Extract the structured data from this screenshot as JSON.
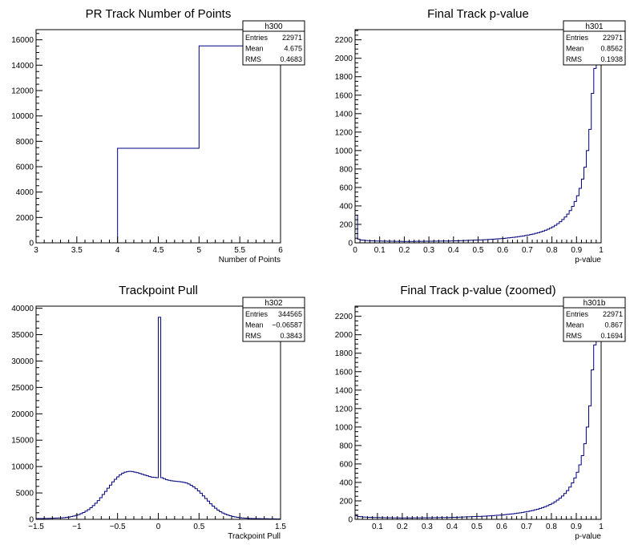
{
  "chart_data": [
    {
      "type": "bar",
      "title": "PR Track Number of Points",
      "xlabel": "Number of Points",
      "ylabel": "",
      "xlim": [
        3,
        6
      ],
      "ylim": [
        0,
        16800
      ],
      "xticks": [
        3,
        3.5,
        4,
        4.5,
        5,
        5.5,
        6
      ],
      "xtick_labels": [
        "3",
        "3.5",
        "4",
        "4.5",
        "5",
        "5.5",
        "6"
      ],
      "yticks": [
        0,
        2000,
        4000,
        6000,
        8000,
        10000,
        12000,
        14000,
        16000
      ],
      "ytick_labels": [
        "0",
        "2000",
        "4000",
        "6000",
        "8000",
        "10000",
        "12000",
        "14000",
        "16000"
      ],
      "bins": [
        [
          4,
          5,
          7450
        ],
        [
          5,
          6,
          15520
        ]
      ],
      "stats": {
        "name": "h300",
        "rows": [
          [
            "Entries",
            "22971"
          ],
          [
            "Mean",
            "4.675"
          ],
          [
            "RMS",
            "0.4683"
          ]
        ]
      }
    },
    {
      "type": "bar",
      "title": "Final Track p-value",
      "xlabel": "p-value",
      "ylabel": "",
      "xlim": [
        0,
        1
      ],
      "ylim": [
        0,
        2310
      ],
      "xticks": [
        0,
        0.1,
        0.2,
        0.3,
        0.4,
        0.5,
        0.6,
        0.7,
        0.8,
        0.9,
        1
      ],
      "xtick_labels": [
        "0",
        "0.1",
        "0.2",
        "0.3",
        "0.4",
        "0.5",
        "0.6",
        "0.7",
        "0.8",
        "0.9",
        "1"
      ],
      "yticks": [
        0,
        200,
        400,
        600,
        800,
        1000,
        1200,
        1400,
        1600,
        1800,
        2000,
        2200
      ],
      "ytick_labels": [
        "0",
        "200",
        "400",
        "600",
        "800",
        "1000",
        "1200",
        "1400",
        "1600",
        "1800",
        "2000",
        "2200"
      ],
      "bin_start": 0,
      "bin_width": 0.01,
      "values": [
        300,
        40,
        30,
        28,
        25,
        24,
        22,
        22,
        20,
        20,
        19,
        18,
        18,
        17,
        17,
        17,
        16,
        16,
        16,
        15,
        15,
        15,
        15,
        15,
        16,
        16,
        16,
        16,
        17,
        17,
        17,
        17,
        18,
        18,
        18,
        19,
        19,
        20,
        20,
        21,
        22,
        22,
        23,
        24,
        25,
        26,
        27,
        28,
        29,
        30,
        31,
        32,
        34,
        35,
        37,
        38,
        40,
        42,
        44,
        46,
        48,
        51,
        54,
        57,
        60,
        63,
        67,
        71,
        75,
        80,
        85,
        90,
        96,
        103,
        110,
        118,
        127,
        137,
        148,
        160,
        174,
        190,
        208,
        229,
        253,
        280,
        312,
        350,
        395,
        448,
        510,
        590,
        690,
        820,
        1000,
        1230,
        1620,
        1890,
        2250,
        2250
      ],
      "stats": {
        "name": "h301",
        "rows": [
          [
            "Entries",
            "22971"
          ],
          [
            "Mean",
            "0.8562"
          ],
          [
            "RMS",
            "0.1938"
          ]
        ]
      }
    },
    {
      "type": "bar",
      "title": "Trackpoint Pull",
      "xlabel": "Trackpoint Pull",
      "ylabel": "",
      "xlim": [
        -1.5,
        1.5
      ],
      "ylim": [
        0,
        40400
      ],
      "xticks": [
        -1.5,
        -1,
        -0.5,
        0,
        0.5,
        1,
        1.5
      ],
      "xtick_labels": [
        "−1.5",
        "−1",
        "−0.5",
        "0",
        "0.5",
        "1",
        "1.5"
      ],
      "yticks": [
        0,
        5000,
        10000,
        15000,
        20000,
        25000,
        30000,
        35000,
        40000
      ],
      "ytick_labels": [
        "0",
        "5000",
        "10000",
        "15000",
        "20000",
        "25000",
        "30000",
        "35000",
        "40000"
      ],
      "bin_start": -1.5,
      "bin_width": 0.03,
      "values": [
        150,
        150,
        160,
        170,
        180,
        190,
        200,
        220,
        240,
        260,
        290,
        330,
        380,
        440,
        520,
        620,
        750,
        900,
        1080,
        1300,
        1550,
        1850,
        2200,
        2600,
        3050,
        3550,
        4100,
        4700,
        5300,
        5900,
        6500,
        7100,
        7600,
        8050,
        8450,
        8750,
        8950,
        9050,
        9100,
        9050,
        8950,
        8850,
        8700,
        8550,
        8400,
        8250,
        8100,
        8000,
        7950,
        7900,
        38300,
        7900,
        7700,
        7500,
        7400,
        7300,
        7250,
        7200,
        7150,
        7100,
        7000,
        6900,
        6700,
        6450,
        6150,
        5800,
        5400,
        4950,
        4450,
        3950,
        3450,
        2950,
        2500,
        2100,
        1750,
        1450,
        1200,
        1000,
        820,
        680,
        560,
        460,
        380,
        320,
        270,
        230,
        200,
        180,
        160,
        150,
        140,
        130,
        120,
        110,
        105,
        100,
        95,
        90,
        85,
        80
      ],
      "stats": {
        "name": "h302",
        "rows": [
          [
            "Entries",
            "344565"
          ],
          [
            "Mean",
            "−0.06587"
          ],
          [
            "RMS",
            "0.3843"
          ]
        ]
      }
    },
    {
      "type": "bar",
      "title": "Final Track p-value (zoomed)",
      "xlabel": "p-value",
      "ylabel": "",
      "xlim": [
        0.01,
        1
      ],
      "ylim": [
        0,
        2310
      ],
      "xticks": [
        0.1,
        0.2,
        0.3,
        0.4,
        0.5,
        0.6,
        0.7,
        0.8,
        0.9,
        1
      ],
      "xtick_labels": [
        "0.1",
        "0.2",
        "0.3",
        "0.4",
        "0.5",
        "0.6",
        "0.7",
        "0.8",
        "0.9",
        "1"
      ],
      "yticks": [
        0,
        200,
        400,
        600,
        800,
        1000,
        1200,
        1400,
        1600,
        1800,
        2000,
        2200
      ],
      "ytick_labels": [
        "0",
        "200",
        "400",
        "600",
        "800",
        "1000",
        "1200",
        "1400",
        "1600",
        "1800",
        "2000",
        "2200"
      ],
      "bin_start": 0.01,
      "bin_width": 0.01,
      "values": [
        40,
        30,
        28,
        25,
        24,
        22,
        22,
        20,
        20,
        19,
        18,
        18,
        17,
        17,
        17,
        16,
        16,
        16,
        15,
        15,
        15,
        15,
        15,
        16,
        16,
        16,
        16,
        17,
        17,
        17,
        17,
        18,
        18,
        18,
        19,
        19,
        20,
        20,
        21,
        22,
        22,
        23,
        24,
        25,
        26,
        27,
        28,
        29,
        30,
        31,
        32,
        34,
        35,
        37,
        38,
        40,
        42,
        44,
        46,
        48,
        51,
        54,
        57,
        60,
        63,
        67,
        71,
        75,
        80,
        85,
        90,
        96,
        103,
        110,
        118,
        127,
        137,
        148,
        160,
        174,
        190,
        208,
        229,
        253,
        280,
        312,
        350,
        395,
        448,
        510,
        590,
        690,
        820,
        1000,
        1230,
        1620,
        1890,
        2250,
        2250
      ],
      "stats": {
        "name": "h301b",
        "rows": [
          [
            "Entries",
            "22971"
          ],
          [
            "Mean",
            "0.867"
          ],
          [
            "RMS",
            "0.1694"
          ]
        ]
      }
    }
  ]
}
